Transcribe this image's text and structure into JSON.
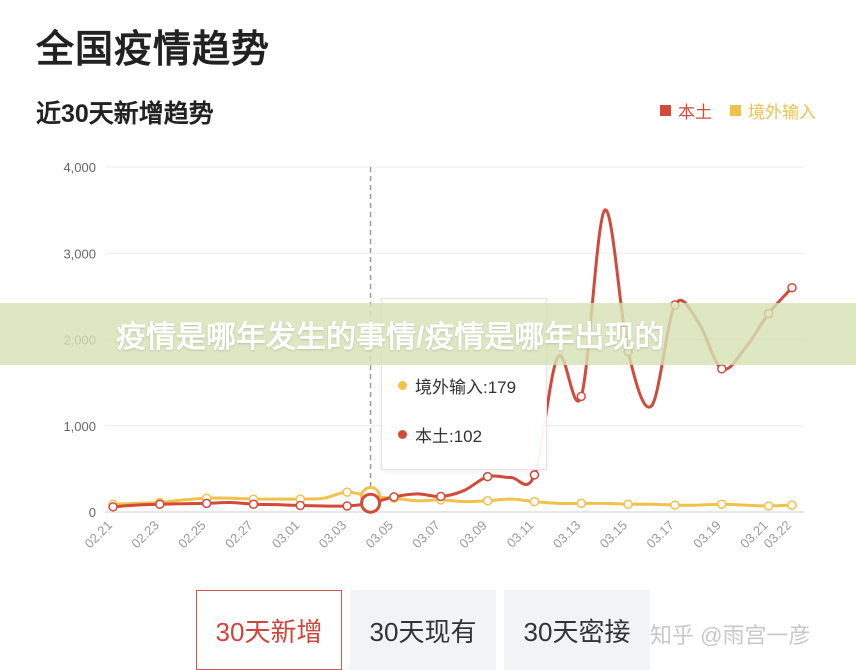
{
  "header": {
    "title": "全国疫情趋势",
    "subtitle": "近30天新增趋势"
  },
  "legend": [
    {
      "label": "本土",
      "color": "#d14a3a"
    },
    {
      "label": "境外输入",
      "color": "#f0c24b"
    }
  ],
  "banner": {
    "text": "疫情是哪年发生的事情/疫情是哪年出现的"
  },
  "tooltip": {
    "rows": [
      {
        "label": "境外输入:179",
        "color": "#f0c24b"
      },
      {
        "label": "本土:102",
        "color": "#d14a3a"
      }
    ]
  },
  "tabs": [
    {
      "label": "30天新增",
      "active": true
    },
    {
      "label": "30天现有",
      "active": false
    },
    {
      "label": "30天密接",
      "active": false
    }
  ],
  "watermark": "知乎 @雨宫一彦",
  "chart_data": {
    "type": "line",
    "title": "近30天新增趋势",
    "x": [
      "02.21",
      "02.22",
      "02.23",
      "02.24",
      "02.25",
      "02.26",
      "02.27",
      "02.28",
      "03.01",
      "03.02",
      "03.03",
      "03.04",
      "03.05",
      "03.06",
      "03.07",
      "03.08",
      "03.09",
      "03.10",
      "03.11",
      "03.12",
      "03.13",
      "03.14",
      "03.15",
      "03.16",
      "03.17",
      "03.18",
      "03.19",
      "03.20",
      "03.21",
      "03.22"
    ],
    "tick_labels": [
      "02.21",
      "02.23",
      "02.25",
      "02.27",
      "03.01",
      "03.03",
      "03.05",
      "03.07",
      "03.09",
      "03.11",
      "03.13",
      "03.15",
      "03.17",
      "03.19",
      "03.21",
      "03.22"
    ],
    "y_ticks": [
      "0",
      "1,000",
      "2,000",
      "3,000",
      "4,000"
    ],
    "ylim": [
      0,
      4000
    ],
    "highlight_x": "03.04",
    "series": [
      {
        "name": "本土",
        "color": "#d14a3a",
        "values": [
          60,
          80,
          90,
          95,
          100,
          110,
          90,
          85,
          75,
          70,
          70,
          102,
          175,
          210,
          180,
          250,
          410,
          400,
          430,
          1800,
          1340,
          3500,
          1860,
          1230,
          2400,
          2200,
          1660,
          1900,
          2300,
          2600
        ]
      },
      {
        "name": "境外输入",
        "color": "#f0c24b",
        "values": [
          90,
          100,
          110,
          140,
          160,
          160,
          150,
          150,
          150,
          160,
          230,
          179,
          160,
          130,
          140,
          120,
          130,
          150,
          120,
          100,
          100,
          100,
          90,
          90,
          80,
          80,
          90,
          80,
          70,
          80
        ]
      }
    ],
    "grid": true,
    "legend_position": "top-right"
  }
}
